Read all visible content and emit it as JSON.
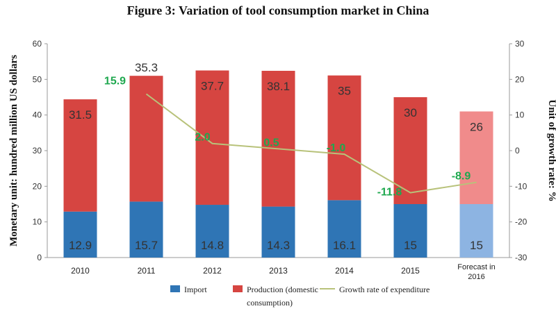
{
  "chart_data": {
    "type": "bar",
    "title": "Figure 3: Variation  of tool consumption  market  in China",
    "ylabel": "Monetary unit: hundred million US dollars",
    "y2label": "Unit of growth rate: %",
    "ylim": [
      0,
      60
    ],
    "y2lim": [
      -30,
      30
    ],
    "yticks": [
      "0",
      "10",
      "20",
      "30",
      "40",
      "50",
      "60"
    ],
    "y2ticks": [
      "-30",
      "-20",
      "-10",
      "0",
      "10",
      "20",
      "30"
    ],
    "categories": [
      "2010",
      "2011",
      "2012",
      "2013",
      "2014",
      "2015",
      "Forecast in 2016"
    ],
    "series": [
      {
        "name": "Import",
        "type": "bar",
        "stack": true,
        "color": "#2f75b5",
        "forecast_color": "#8db4e2",
        "values": [
          12.9,
          15.7,
          14.8,
          14.3,
          16.1,
          15,
          15
        ],
        "labels": [
          "12.9",
          "15.7",
          "14.8",
          "14.3",
          "16.1",
          "15",
          "15"
        ]
      },
      {
        "name": "Production (domestic consumption)",
        "type": "bar",
        "stack": true,
        "color": "#d64541",
        "forecast_color": "#f08b8b",
        "values": [
          31.5,
          35.3,
          37.7,
          38.1,
          35,
          30,
          26
        ],
        "labels": [
          "31.5",
          "35.3",
          "37.7",
          "38.1",
          "35",
          "30",
          "26"
        ]
      },
      {
        "name": "Growth rate of expenditure",
        "type": "line",
        "axis": "right",
        "color": "#b8c27a",
        "values": [
          null,
          15.9,
          2.0,
          0.5,
          -1.0,
          -11.8,
          -8.9
        ],
        "labels": [
          "",
          "15.9",
          "2.0",
          "0.5",
          "-1.0",
          "-11.8",
          "-8.9"
        ]
      }
    ],
    "legend": {
      "position": "bottom",
      "items": [
        {
          "label": "Import",
          "color": "#2f75b5"
        },
        {
          "label": "Production (domestic consumption)",
          "color": "#d64541"
        },
        {
          "label": "Growth rate of expenditure",
          "color": "#b8c27a"
        }
      ]
    },
    "grid": false
  }
}
